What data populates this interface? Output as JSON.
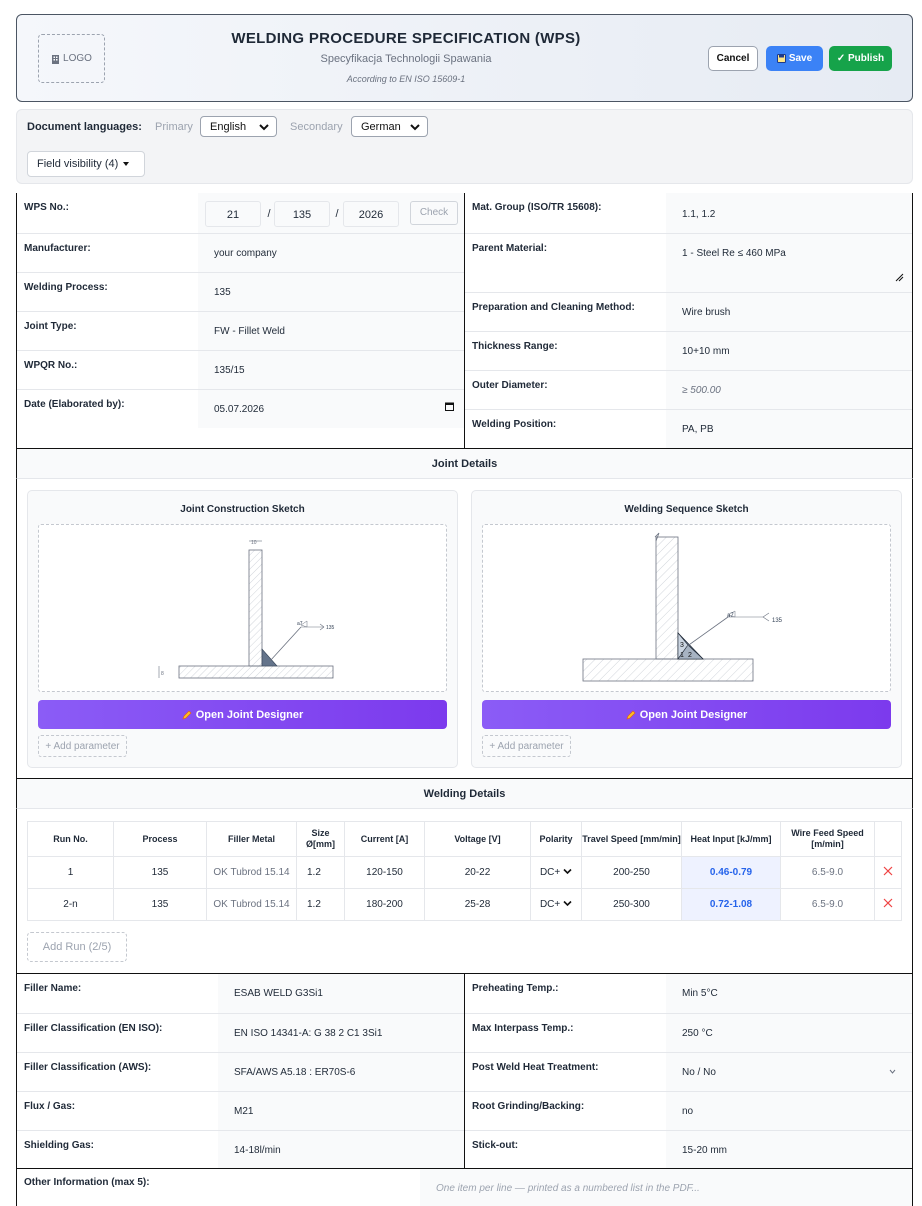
{
  "header": {
    "logo": "LOGO",
    "title": "WELDING PROCEDURE SPECIFICATION (WPS)",
    "subtitle": "Specyfikacja Technologii Spawania",
    "standard": "According to EN ISO 15609-1",
    "cancel": "Cancel",
    "save": "Save",
    "publish": "✓ Publish"
  },
  "languages": {
    "label": "Document languages:",
    "primary_label": "Primary",
    "primary": "English",
    "secondary_label": "Secondary",
    "secondary": "German",
    "visibility": "Field visibility (4)"
  },
  "general": {
    "wps_label": "WPS No.:",
    "wps_a": "21",
    "wps_sep1": "/",
    "wps_b": "135",
    "wps_sep2": "/",
    "wps_c": "2026",
    "check": "Check",
    "left": [
      {
        "label": "Manufacturer:",
        "value": "your company"
      },
      {
        "label": "Welding Process:",
        "value": "135"
      },
      {
        "label": "Joint Type:",
        "value": "FW - Fillet Weld"
      },
      {
        "label": "WPQR No.:",
        "value": "135/15"
      },
      {
        "label": "Date (Elaborated by):",
        "value": "05.07.2026"
      }
    ],
    "right": [
      {
        "label": "Mat. Group (ISO/TR 15608):",
        "value": "1.1, 1.2"
      },
      {
        "label": "Parent Material:",
        "value": "1 - Steel Re ≤ 460 MPa"
      },
      {
        "label": "Preparation and Cleaning Method:",
        "value": "Wire brush"
      },
      {
        "label": "Thickness Range:",
        "value": "10+10 mm"
      },
      {
        "label": "Outer Diameter:",
        "value": "≥ 500.00"
      },
      {
        "label": "Welding Position:",
        "value": "PA, PB"
      }
    ]
  },
  "joint": {
    "section": "Joint Details",
    "left_title": "Joint Construction Sketch",
    "right_title": "Welding Sequence Sketch",
    "designer": "Open Joint Designer",
    "add_param": "+ Add parameter",
    "sketch1": {
      "dim_top": "10",
      "dim_side": "8",
      "weld": "a7",
      "process": "135"
    },
    "sketch2": {
      "weld": "a7",
      "process": "135",
      "run1": "1",
      "run2": "2",
      "run3": "3"
    }
  },
  "welding": {
    "section": "Welding Details",
    "headers": [
      "Run No.",
      "Process",
      "Filler Metal",
      "Size Ø[mm]",
      "Current [A]",
      "Voltage [V]",
      "Polarity",
      "Travel Speed [mm/min]",
      "Heat Input [kJ/mm]",
      "Wire Feed Speed [m/min]"
    ],
    "rows": [
      {
        "run": "1",
        "process": "135",
        "filler": "OK Tubrod 15.14",
        "size": "1.2",
        "current": "120-150",
        "voltage": "20-22",
        "polarity": "DC+",
        "travel": "200-250",
        "heat": "0.46-0.79",
        "wire": "6.5-9.0"
      },
      {
        "run": "2-n",
        "process": "135",
        "filler": "OK Tubrod 15.14",
        "size": "1.2",
        "current": "180-200",
        "voltage": "25-28",
        "polarity": "DC+",
        "travel": "250-300",
        "heat": "0.72-1.08",
        "wire": "6.5-9.0"
      }
    ],
    "add_run": "Add Run (2/5)"
  },
  "filler": {
    "left": [
      {
        "label": "Filler Name:",
        "value": "ESAB WELD G3Si1"
      },
      {
        "label": "Filler Classification (EN ISO):",
        "value": "EN ISO 14341-A: G 38 2 C1 3Si1"
      },
      {
        "label": "Filler Classification (AWS):",
        "value": "SFA/AWS A5.18 : ER70S-6"
      },
      {
        "label": "Flux / Gas:",
        "value": "M21"
      },
      {
        "label": "Shielding Gas:",
        "value": "14-18l/min"
      }
    ],
    "right": [
      {
        "label": "Preheating Temp.:",
        "value": "Min 5°C"
      },
      {
        "label": "Max Interpass Temp.:",
        "value": "250 °C"
      },
      {
        "label": "Post Weld Heat Treatment:",
        "value": "No / No"
      },
      {
        "label": "Root Grinding/Backing:",
        "value": "no"
      },
      {
        "label": "Stick-out:",
        "value": "15-20 mm"
      }
    ]
  },
  "other": {
    "label": "Other Information (max 5):",
    "placeholder": "One item per line — printed as a numbered list in the PDF..."
  },
  "colors": {
    "accent": "#3b82f6",
    "publish": "#16a34a",
    "designer": "#7c3aed",
    "heat": "#2563eb",
    "delete": "#ef4444"
  }
}
